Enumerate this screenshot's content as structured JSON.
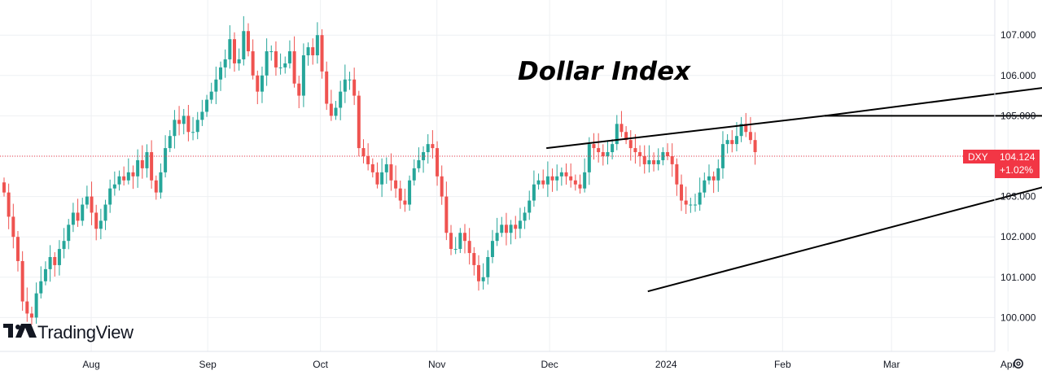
{
  "chart_data": {
    "type": "candlestick",
    "title": "Dollar Index",
    "symbol": "DXY",
    "last_price": "104.124",
    "change": "+1.02%",
    "brand": "TradingView",
    "y_ticks": [
      "100.000",
      "101.000",
      "102.000",
      "103.000",
      "104.000",
      "105.000",
      "106.000",
      "107.000"
    ],
    "ylim": [
      99.55,
      108.1
    ],
    "x_ticks": [
      "Aug",
      "Sep",
      "Oct",
      "Nov",
      "Dec",
      "2024",
      "Feb",
      "Mar",
      "Apr"
    ],
    "colors": {
      "up": "#26a69a",
      "down": "#ef5350",
      "badge": "#f23645",
      "trendline": "#000000"
    },
    "series": [
      {
        "name": "DXY close (approx.)",
        "values": [
          103.1,
          102.5,
          102.0,
          101.4,
          100.4,
          100.1,
          100.0,
          100.6,
          100.9,
          101.2,
          101.5,
          101.3,
          101.7,
          101.9,
          102.3,
          102.6,
          102.4,
          102.8,
          103.0,
          102.6,
          102.2,
          102.4,
          102.8,
          103.2,
          103.3,
          103.5,
          103.4,
          103.6,
          103.5,
          103.9,
          103.7,
          104.1,
          103.4,
          103.1,
          103.6,
          104.2,
          104.5,
          104.9,
          104.8,
          105.0,
          104.6,
          104.6,
          104.9,
          105.1,
          105.4,
          105.6,
          105.9,
          106.2,
          106.4,
          106.9,
          106.3,
          106.4,
          107.1,
          106.6,
          106.0,
          105.6,
          106.0,
          106.6,
          106.6,
          106.2,
          106.2,
          106.3,
          106.6,
          105.8,
          105.5,
          106.5,
          106.7,
          106.5,
          107.0,
          106.1,
          105.3,
          105.0,
          105.2,
          105.6,
          105.9,
          105.9,
          105.5,
          104.2,
          104.0,
          103.8,
          103.6,
          103.3,
          103.6,
          103.8,
          103.4,
          103.2,
          102.9,
          102.8,
          103.4,
          103.7,
          103.9,
          104.1,
          104.3,
          104.2,
          103.5,
          103.0,
          102.1,
          101.7,
          101.7,
          102.1,
          101.9,
          101.6,
          101.3,
          100.9,
          101.0,
          101.5,
          101.9,
          102.1,
          102.3,
          102.1,
          102.3,
          102.2,
          102.4,
          102.6,
          102.9,
          103.3,
          103.4,
          103.3,
          103.5,
          103.4,
          103.5,
          103.6,
          103.5,
          103.4,
          103.3,
          103.2,
          103.6,
          104.3,
          104.2,
          104.1,
          104.0,
          104.1,
          104.3,
          104.8,
          104.6,
          104.4,
          104.2,
          104.1,
          104.0,
          103.8,
          103.9,
          103.8,
          103.9,
          104.1,
          104.0,
          103.8,
          103.3,
          102.9,
          102.8,
          102.8,
          102.8,
          103.1,
          103.4,
          103.5,
          103.4,
          103.7,
          104.3,
          104.4,
          104.3,
          104.5,
          104.8,
          104.6,
          104.4,
          104.1
        ]
      }
    ],
    "annotations": [
      {
        "type": "trendline",
        "from": {
          "x": "Dec 1 2023",
          "y": 104.2
        },
        "to": {
          "x": "Feb 13 2024",
          "y": 105.0
        }
      },
      {
        "type": "trendline",
        "from": {
          "x": "Feb 13 2024",
          "y": 105.0
        },
        "to": {
          "x": "Apr 20 2024",
          "y": 105.8
        }
      },
      {
        "type": "horizontal",
        "from": {
          "x": "Feb 13 2024",
          "y": 105.0
        },
        "to": {
          "x": "Apr 20 2024",
          "y": 105.0
        }
      },
      {
        "type": "trendline",
        "from": {
          "x": "Dec 28 2023",
          "y": 100.65
        },
        "to": {
          "x": "Apr 20 2024",
          "y": 103.45
        }
      }
    ]
  }
}
